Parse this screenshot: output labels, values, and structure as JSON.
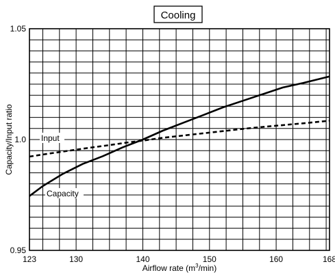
{
  "chart_data": {
    "type": "line",
    "title": "Cooling",
    "xlabel": "Airflow rate (m",
    "xlabel_sup": "3",
    "xlabel_tail": "/min)",
    "ylabel": "Capacity/Input ratio",
    "xlim": [
      123,
      168
    ],
    "ylim": [
      0.95,
      1.05
    ],
    "x_ticks": [
      "123",
      "130",
      "140",
      "150",
      "160",
      "168"
    ],
    "y_ticks": [
      "1.05",
      "1.0",
      "0.95"
    ],
    "grid": true,
    "series": [
      {
        "name": "Capacity",
        "style": "solid",
        "color": "#000000",
        "x": [
          123,
          125,
          128,
          131,
          134,
          137,
          140,
          143,
          146,
          149,
          152,
          155,
          158,
          161,
          164,
          168
        ],
        "y": [
          0.9745,
          0.979,
          0.9845,
          0.989,
          0.9925,
          0.9965,
          1.0,
          1.004,
          1.0075,
          1.011,
          1.0145,
          1.0175,
          1.0205,
          1.0235,
          1.0255,
          1.0285
        ]
      },
      {
        "name": "Input",
        "style": "dashed",
        "color": "#000000",
        "x": [
          123,
          126,
          129,
          132,
          135,
          138,
          140,
          143,
          146,
          149,
          152,
          155,
          158,
          161,
          164,
          168
        ],
        "y": [
          0.9923,
          0.9937,
          0.995,
          0.9963,
          0.9975,
          0.9988,
          0.9995,
          1.0008,
          1.0018,
          1.0028,
          1.0038,
          1.0048,
          1.0057,
          1.0065,
          1.0073,
          1.0085
        ]
      }
    ]
  }
}
